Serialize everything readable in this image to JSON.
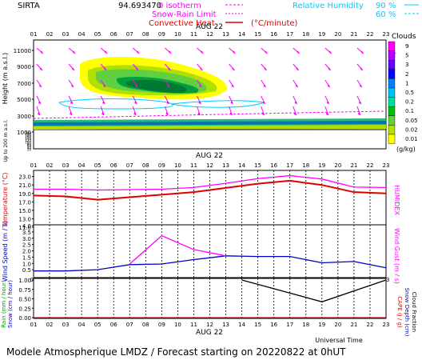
{
  "header": {
    "station": "SIRTA",
    "coords": "94.693470",
    "isotherm_label": "0 isotherm",
    "snow_rain_label": "Snow-Rain Limit",
    "convective_label": "Convective Heat",
    "convective_unit": "(°C/minute)",
    "rh_label": "Relative Humidity",
    "rh_90": "90 %",
    "rh_60": "60 %"
  },
  "footer": {
    "title": "Modele Atmospherique LMDZ / Forecast starting on 20220822 at 0hUT",
    "time_label": "Universal Time"
  },
  "colors": {
    "magenta": "#ff00ff",
    "red": "#e00000",
    "blue": "#0000cc",
    "cyan": "#00ccff",
    "black": "#000000"
  },
  "chart_data": [
    {
      "type": "heatmap",
      "name": "clouds",
      "date_label": "AUG 22",
      "hours": [
        "01",
        "02",
        "03",
        "04",
        "05",
        "06",
        "07",
        "08",
        "09",
        "10",
        "11",
        "12",
        "13",
        "14",
        "15",
        "16",
        "17",
        "18",
        "19",
        "20",
        "21",
        "22",
        "23"
      ],
      "ylabel": "Height (m a.s.l.)",
      "ylabel_low": "Up to 200 m a.s.l.",
      "y_ticks_upper": [
        "11000",
        "9000",
        "7000",
        "5000",
        "3000",
        "1000"
      ],
      "y_ticks_lower": [
        "200",
        "180",
        "160",
        "140",
        "120",
        "100",
        "80",
        "60",
        "40",
        "20"
      ],
      "legend_title": "Clouds",
      "legend_unit": "(g/kg)",
      "legend_levels": [
        "9",
        "5",
        "3",
        "2",
        "1",
        "0.5",
        "0.2",
        "0.1",
        "0.05",
        "0.02",
        "0.01"
      ],
      "legend_colors": [
        "#ff00ff",
        "#b400ff",
        "#6000ff",
        "#0000ff",
        "#0080ff",
        "#00c0ff",
        "#00e0a0",
        "#00c000",
        "#60d040",
        "#b0e000",
        "#ffff00"
      ]
    },
    {
      "type": "line",
      "name": "temperature",
      "date_label": "AUG 22",
      "hours": [
        "01",
        "02",
        "03",
        "04",
        "05",
        "06",
        "07",
        "08",
        "09",
        "10",
        "11",
        "12",
        "13",
        "14",
        "15",
        "16",
        "17",
        "18",
        "19",
        "20",
        "21",
        "22",
        "23"
      ],
      "ylabel": "Temperature (°C)",
      "ylabel_right": "HUMIDEX",
      "y_ticks": [
        "23.0",
        "21.0",
        "19.0",
        "17.0",
        "15.0",
        "13.0",
        "11.0"
      ],
      "ylim": [
        11,
        23.5
      ],
      "series": [
        {
          "color": "#e00000",
          "x": [
            1,
            3,
            5,
            7,
            9,
            11,
            13,
            15,
            17,
            19,
            21,
            23
          ],
          "values": [
            18.5,
            18.3,
            17.5,
            18.1,
            18.7,
            19.3,
            20.3,
            21.3,
            22.0,
            21.0,
            19.3,
            19.0
          ]
        },
        {
          "color": "#ff00ff",
          "x": [
            1,
            3,
            5,
            7,
            9,
            11,
            13,
            15,
            17,
            19,
            21,
            23
          ],
          "values": [
            20.0,
            20.0,
            19.8,
            19.9,
            20.0,
            20.4,
            21.4,
            22.5,
            23.2,
            22.4,
            20.5,
            20.4
          ]
        }
      ]
    },
    {
      "type": "line",
      "name": "wind",
      "hours": [
        "01",
        "02",
        "03",
        "04",
        "05",
        "06",
        "07",
        "08",
        "09",
        "10",
        "11",
        "12",
        "13",
        "14",
        "15",
        "16",
        "17",
        "18",
        "19",
        "20",
        "21",
        "22",
        "23"
      ],
      "ylabel": "Wind Speed (m / s)",
      "ylabel_right": "Wind Gust (m / s)",
      "y_ticks": [
        "4.0",
        "3.5",
        "3.0",
        "2.5",
        "2.0",
        "1.5",
        "1.0",
        "0.5"
      ],
      "ylim": [
        0,
        4
      ],
      "series": [
        {
          "color": "#0000cc",
          "x": [
            1,
            3,
            5,
            7,
            9,
            11,
            13,
            15,
            17,
            19,
            21,
            23
          ],
          "values": [
            0.4,
            0.4,
            0.5,
            0.9,
            0.95,
            1.3,
            1.6,
            1.55,
            1.55,
            1.05,
            1.15,
            0.65
          ]
        },
        {
          "color": "#ff00ff",
          "x": [
            7,
            9,
            11,
            13
          ],
          "values": [
            0.95,
            3.2,
            2.1,
            1.6
          ]
        }
      ]
    },
    {
      "type": "line",
      "name": "precipitation",
      "date_label": "AUG 22",
      "hours": [
        "01",
        "02",
        "03",
        "04",
        "05",
        "06",
        "07",
        "08",
        "09",
        "10",
        "11",
        "12",
        "13",
        "14",
        "15",
        "16",
        "17",
        "18",
        "19",
        "20",
        "21",
        "22",
        "23"
      ],
      "ylabel": "Rain (mm / hour)",
      "ylabel_snow": "Snow (cm / hour)",
      "ylabel_right_red": "CAPE (J / g)",
      "ylabel_right_blue": "Snow Depth (cm)",
      "ylabel_right_black": "Cloud Fraction",
      "y_ticks": [
        "1.00",
        "0.75",
        "0.50",
        "0.25",
        "0.00"
      ],
      "ylim": [
        0,
        1
      ],
      "series": [
        {
          "color": "#000000",
          "x": [
            14,
            19,
            23
          ],
          "values": [
            1.0,
            0.42,
            1.0
          ]
        }
      ]
    }
  ]
}
